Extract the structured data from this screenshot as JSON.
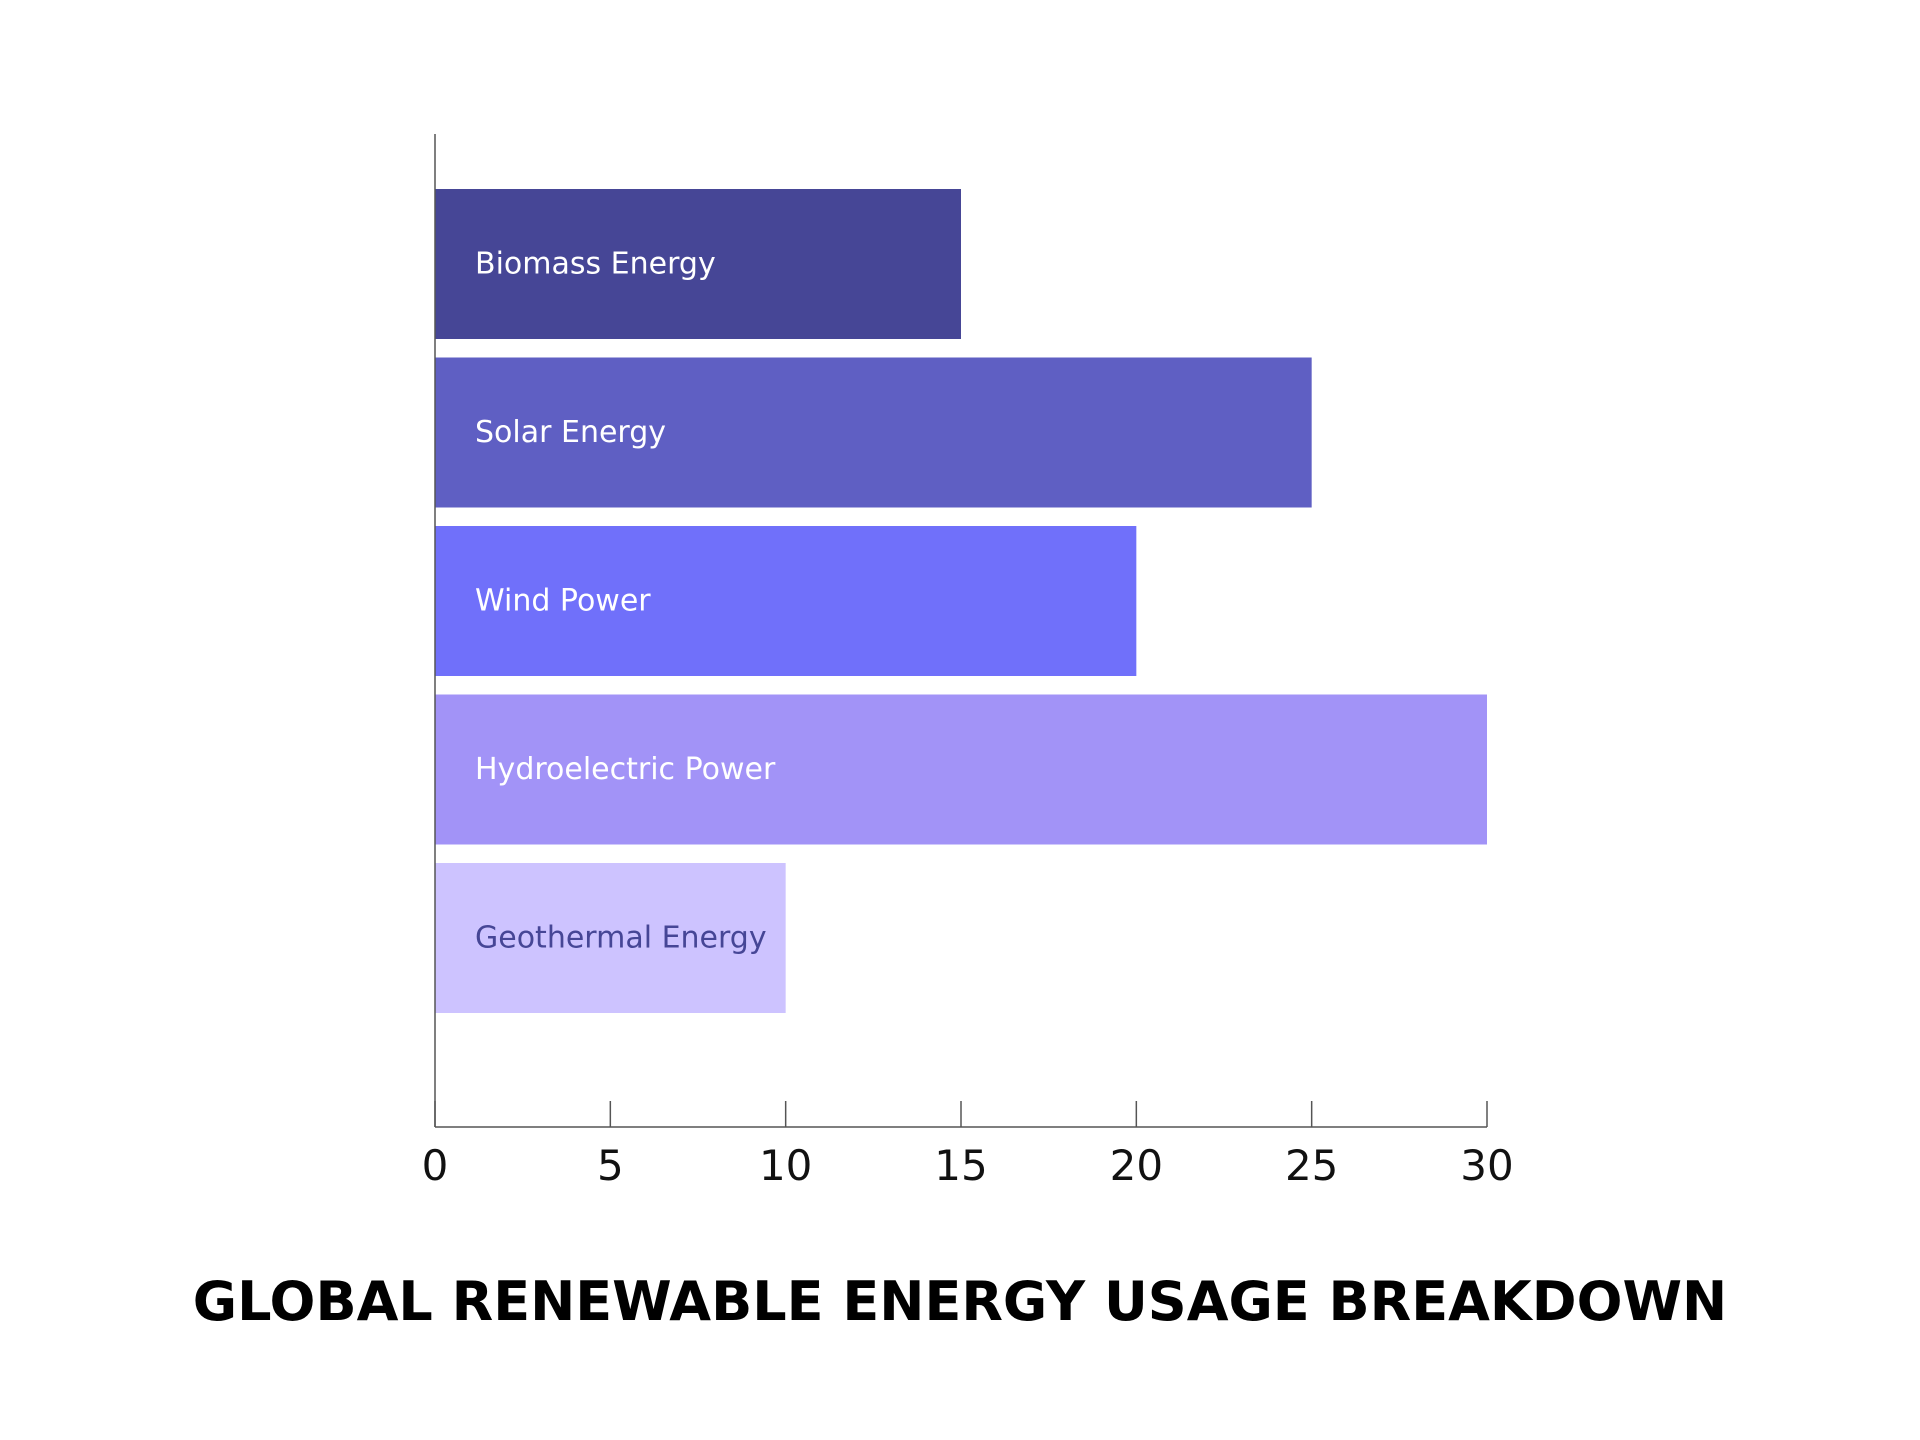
{
  "chart_data": {
    "type": "bar",
    "orientation": "horizontal",
    "title": "GLOBAL RENEWABLE ENERGY USAGE BREAKDOWN",
    "xlabel": "",
    "ylabel": "",
    "xlim": [
      0,
      30
    ],
    "xticks": [
      0,
      5,
      10,
      15,
      20,
      25,
      30
    ],
    "grid": false,
    "categories": [
      "Biomass Energy",
      "Solar Energy",
      "Wind Power",
      "Hydroelectric Power",
      "Geothermal Energy"
    ],
    "values": [
      15,
      25,
      20,
      30,
      10
    ],
    "bar_colors": [
      "#464696",
      "#5f5fc3",
      "#7070fa",
      "#a293f7",
      "#cdc3ff"
    ],
    "label_colors": [
      "#ffffff",
      "#ffffff",
      "#ffffff",
      "#ffffff",
      "#464696"
    ],
    "axis_color": "#555555"
  }
}
